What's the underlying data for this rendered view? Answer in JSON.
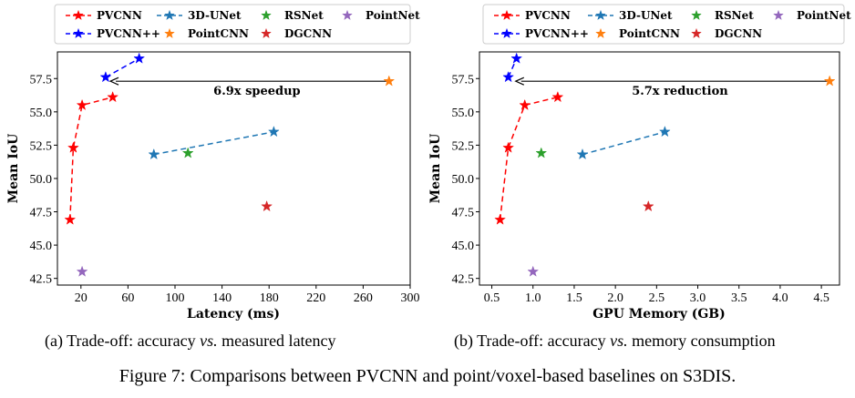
{
  "figure_caption": "Figure 7: Comparisons between PVCNN and point/voxel-based baselines on S3DIS.",
  "subcaptions": {
    "a": {
      "prefix": "(a) Trade-off: accuracy ",
      "vs": "vs.",
      "suffix": " measured latency"
    },
    "b": {
      "prefix": "(b) Trade-off: accuracy ",
      "vs": "vs.",
      "suffix": " memory consumption"
    }
  },
  "chart_data": [
    {
      "type": "scatter",
      "xlabel": "Latency (ms)",
      "ylabel": "Mean IoU",
      "xlim": [
        0,
        300
      ],
      "ylim": [
        42,
        59.5
      ],
      "xticks": [
        20,
        60,
        100,
        140,
        180,
        220,
        260,
        300
      ],
      "yticks": [
        42.5,
        45.0,
        47.5,
        50.0,
        52.5,
        55.0,
        57.5
      ],
      "grid": false,
      "legend_position": "top",
      "series": [
        {
          "name": "PVCNN",
          "color": "#ff0000",
          "dashed": true,
          "x": [
            10.7,
            13.5,
            21,
            47
          ],
          "y": [
            46.9,
            52.3,
            55.5,
            56.1
          ]
        },
        {
          "name": "PVCNN++",
          "color": "#0000ff",
          "dashed": true,
          "x": [
            41,
            69.5
          ],
          "y": [
            57.6,
            59.0
          ]
        },
        {
          "name": "3D-UNet",
          "color": "#1f77b4",
          "dashed": true,
          "x": [
            82,
            184
          ],
          "y": [
            51.8,
            53.5
          ]
        },
        {
          "name": "PointCNN",
          "color": "#ff7f0e",
          "dashed": false,
          "x": [
            282
          ],
          "y": [
            57.3
          ]
        },
        {
          "name": "RSNet",
          "color": "#2ca02c",
          "dashed": false,
          "x": [
            111
          ],
          "y": [
            51.9
          ]
        },
        {
          "name": "DGCNN",
          "color": "#d62728",
          "dashed": false,
          "x": [
            178
          ],
          "y": [
            47.9
          ]
        },
        {
          "name": "PointNet",
          "color": "#9467bd",
          "dashed": false,
          "x": [
            21
          ],
          "y": [
            43.0
          ]
        }
      ],
      "annotation": {
        "text": "6.9x speedup",
        "arrow_from": [
          282,
          57.3
        ],
        "arrow_to": [
          45,
          57.3
        ]
      }
    },
    {
      "type": "scatter",
      "xlabel": "GPU Memory (GB)",
      "ylabel": "Mean IoU",
      "xlim": [
        0.35,
        4.72
      ],
      "ylim": [
        42,
        59.5
      ],
      "xticks": [
        0.5,
        1.0,
        1.5,
        2.0,
        2.5,
        3.0,
        3.5,
        4.0,
        4.5
      ],
      "yticks": [
        42.5,
        45.0,
        47.5,
        50.0,
        52.5,
        55.0,
        57.5
      ],
      "grid": false,
      "legend_position": "top",
      "series": [
        {
          "name": "PVCNN",
          "color": "#ff0000",
          "dashed": true,
          "x": [
            0.6,
            0.7,
            0.9,
            1.3
          ],
          "y": [
            46.9,
            52.3,
            55.5,
            56.1
          ]
        },
        {
          "name": "PVCNN++",
          "color": "#0000ff",
          "dashed": true,
          "x": [
            0.7,
            0.8
          ],
          "y": [
            57.6,
            59.0
          ]
        },
        {
          "name": "3D-UNet",
          "color": "#1f77b4",
          "dashed": true,
          "x": [
            1.6,
            2.6
          ],
          "y": [
            51.8,
            53.5
          ]
        },
        {
          "name": "PointCNN",
          "color": "#ff7f0e",
          "dashed": false,
          "x": [
            4.6
          ],
          "y": [
            57.3
          ]
        },
        {
          "name": "RSNet",
          "color": "#2ca02c",
          "dashed": false,
          "x": [
            1.1
          ],
          "y": [
            51.9
          ]
        },
        {
          "name": "DGCNN",
          "color": "#d62728",
          "dashed": false,
          "x": [
            2.4
          ],
          "y": [
            47.9
          ]
        },
        {
          "name": "PointNet",
          "color": "#9467bd",
          "dashed": false,
          "x": [
            1.0
          ],
          "y": [
            43.0
          ]
        }
      ],
      "annotation": {
        "text": "5.7x reduction",
        "arrow_from": [
          4.6,
          57.3
        ],
        "arrow_to": [
          0.79,
          57.3
        ]
      }
    }
  ]
}
